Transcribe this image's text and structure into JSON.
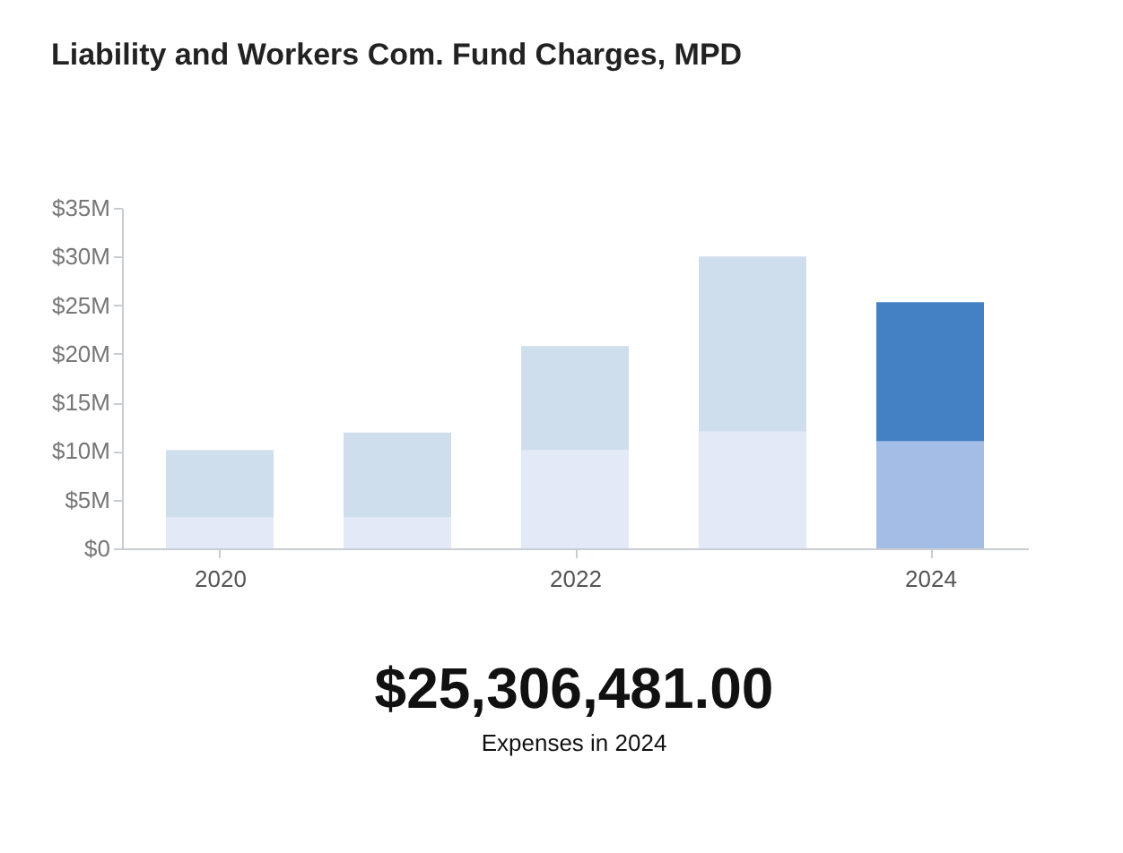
{
  "chart_data": {
    "type": "bar",
    "title": "Liability and Workers Com. Fund Charges, MPD",
    "categories": [
      "2020",
      null,
      "2022",
      null,
      "2024"
    ],
    "stacked": true,
    "series": [
      {
        "values": [
          3.2,
          3.2,
          10.1,
          12.0,
          11.0
        ],
        "colors": [
          "#e3e9f6",
          "#e3e9f6",
          "#e3e9f6",
          "#e3e9f6",
          "#a4bde6"
        ]
      },
      {
        "values": [
          6.9,
          8.7,
          10.7,
          18.0,
          14.3
        ],
        "colors": [
          "#cfdeed",
          "#cfdeed",
          "#cfdeed",
          "#cfdeed",
          "#4480c4"
        ]
      }
    ],
    "ylim": [
      0,
      35
    ],
    "yticks": [
      {
        "value": 0,
        "label": "$0"
      },
      {
        "value": 5,
        "label": "$5M"
      },
      {
        "value": 10,
        "label": "$10M"
      },
      {
        "value": 15,
        "label": "$15M"
      },
      {
        "value": 20,
        "label": "$20M"
      },
      {
        "value": 25,
        "label": "$25M"
      },
      {
        "value": 30,
        "label": "$30M"
      },
      {
        "value": 35,
        "label": "$35M"
      }
    ],
    "grid": false,
    "annotations": [
      "$25,306,481.00",
      "Expenses in 2024"
    ]
  }
}
